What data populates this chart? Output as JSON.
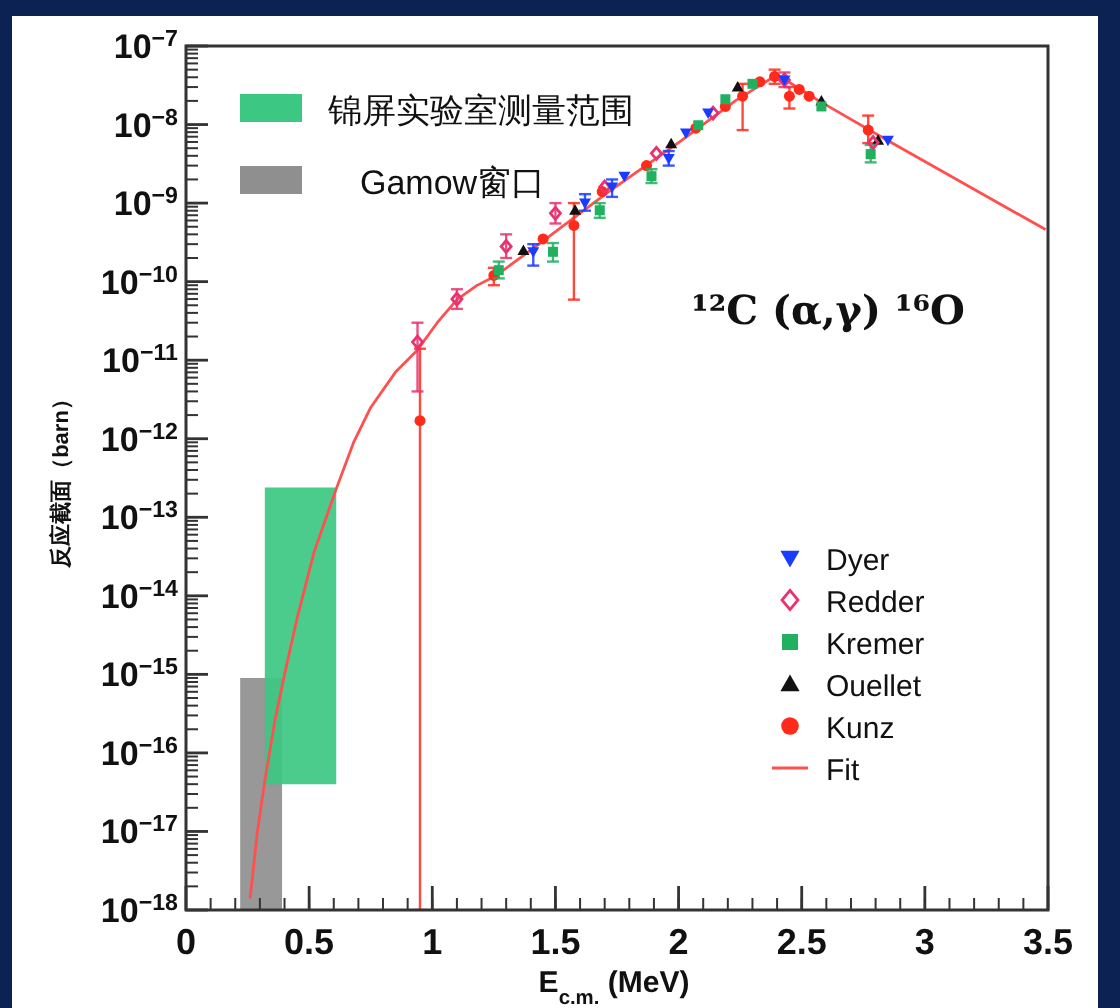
{
  "chart_data": {
    "type": "scatter",
    "xlabel": "E$_{c.m.}$ (MeV)",
    "ylabel": "反应截面（barn）",
    "annotations": [
      "¹²C (α,γ) ¹⁶O"
    ],
    "xlim": [
      0,
      3.5
    ],
    "xticks": [
      0,
      0.5,
      1,
      1.5,
      2,
      2.5,
      3,
      3.5
    ],
    "ylim": [
      1e-18,
      1e-07
    ],
    "log": "y",
    "yticks": [
      {
        "value": 1e-18,
        "label": "10$^{−18}$"
      },
      {
        "value": 1e-17,
        "label": "10$^{−17}$"
      },
      {
        "value": 1e-16,
        "label": "10$^{−16}$"
      },
      {
        "value": 1e-15,
        "label": "10$^{−15}$"
      },
      {
        "value": 1e-14,
        "label": "10$^{−14}$"
      },
      {
        "value": 1e-13,
        "label": "10$^{−13}$"
      },
      {
        "value": 1e-12,
        "label": "10$^{−12}$"
      },
      {
        "value": 1e-11,
        "label": "10$^{−11}$"
      },
      {
        "value": 1e-10,
        "label": "10$^{−10}$"
      },
      {
        "value": 1e-09,
        "label": "10$^{−9}$"
      },
      {
        "value": 1e-08,
        "label": "10$^{−8}$"
      },
      {
        "value": 1e-07,
        "label": "10$^{−7}$"
      }
    ],
    "legend": "right",
    "grid": false,
    "series": [
      {
        "name": "锦屏实验室测量范围",
        "type": "line",
        "color": "#3cc882",
        "x": [
          0.32,
          0.61
        ],
        "values": [
          null,
          null
        ],
        "lower": [
          4e-17,
          4e-17
        ],
        "upper": [
          2.4e-13,
          2.4e-13
        ]
      },
      {
        "name": "Gamow窗口",
        "type": "line",
        "color": "#8f8f8f",
        "x": [
          0.22,
          0.39
        ],
        "values": [
          null,
          null
        ],
        "lower": [
          1e-18,
          1e-18
        ],
        "upper": [
          9e-16,
          9e-16
        ]
      },
      {
        "name": "Dyer",
        "marker": "triangle_down",
        "color": "#1a3cff",
        "x": [
          1.41,
          1.62,
          1.73,
          1.78,
          1.96,
          2.03,
          2.12,
          2.43,
          2.85
        ],
        "values": [
          2.4e-10,
          1e-09,
          1.6e-09,
          2.2e-09,
          3.7e-09,
          7.8e-09,
          1.4e-08,
          3.7e-08,
          6.3e-09
        ],
        "errors": [
          [
            1.6e-10,
            3e-10
          ],
          [
            8e-10,
            1.3e-09
          ],
          [
            1.2e-09,
            2e-09
          ],
          null,
          [
            3e-09,
            4.6e-09
          ],
          null,
          null,
          null,
          null
        ]
      },
      {
        "name": "Redder",
        "marker": "diamond",
        "color": "#e8336e",
        "x": [
          0.94,
          1.1,
          1.3,
          1.5,
          1.7,
          1.91,
          2.14,
          2.43,
          2.79
        ],
        "values": [
          1.7e-11,
          6e-11,
          2.8e-10,
          7.4e-10,
          1.6e-09,
          4.3e-09,
          1.4e-08,
          3.7e-08,
          5.9e-09
        ],
        "errors": [
          [
            4e-12,
            3e-11
          ],
          [
            4.5e-11,
            8e-11
          ],
          [
            2e-10,
            4e-10
          ],
          [
            5.5e-10,
            1e-09
          ],
          null,
          null,
          null,
          [
            3e-08,
            4.6e-08
          ],
          null
        ]
      },
      {
        "name": "Kremer",
        "marker": "square",
        "color": "#20b060",
        "x": [
          1.27,
          1.49,
          1.68,
          1.89,
          2.08,
          2.19,
          2.3,
          2.58,
          2.78
        ],
        "values": [
          1.4e-10,
          2.4e-10,
          8.1e-10,
          2.2e-09,
          9.8e-09,
          2.1e-08,
          3.3e-08,
          1.7e-08,
          4.2e-09
        ],
        "errors": [
          [
            1.1e-10,
            1.8e-10
          ],
          [
            1.8e-10,
            3.1e-10
          ],
          [
            6.5e-10,
            1e-09
          ],
          [
            1.8e-09,
            2.7e-09
          ],
          null,
          null,
          null,
          null,
          [
            3.3e-09,
            5.5e-09
          ]
        ]
      },
      {
        "name": "Ouellet",
        "marker": "triangle",
        "color": "#111111",
        "x": [
          1.37,
          1.58,
          1.97,
          2.24,
          2.58,
          2.81
        ],
        "values": [
          2.5e-10,
          8.1e-10,
          5.7e-09,
          3e-08,
          2e-08,
          6.3e-09
        ]
      },
      {
        "name": "Kunz",
        "marker": "circle",
        "color": "#ff2a1a",
        "x": [
          0.95,
          1.25,
          1.45,
          1.575,
          1.69,
          1.87,
          2.07,
          2.19,
          2.26,
          2.33,
          2.39,
          2.45,
          2.49,
          2.53,
          2.77
        ],
        "values": [
          1.7e-12,
          1.2e-10,
          3.5e-10,
          5.2e-10,
          1.4e-09,
          3e-09,
          9e-09,
          1.7e-08,
          2.3e-08,
          3.5e-08,
          4.1e-08,
          2.3e-08,
          2.8e-08,
          2.3e-08,
          8.5e-09
        ],
        "errors": [
          [
            1e-18,
            1.4e-11
          ],
          [
            9e-11,
            1.5e-10
          ],
          null,
          [
            5.9e-11,
            1e-09
          ],
          null,
          null,
          null,
          null,
          [
            8.5e-09,
            3.3e-08
          ],
          null,
          [
            3.3e-08,
            5e-08
          ],
          [
            1.6e-08,
            3e-08
          ],
          null,
          null,
          [
            5.8e-09,
            1.3e-08
          ]
        ]
      },
      {
        "name": "Fit",
        "type": "line",
        "color": "#ff5050",
        "x": [
          0.26,
          0.29,
          0.32,
          0.36,
          0.4,
          0.45,
          0.52,
          0.61,
          0.68,
          0.75,
          0.85,
          0.94,
          1.02,
          1.1,
          1.18,
          1.26,
          1.445,
          1.71,
          2.0,
          2.23,
          2.4,
          2.57,
          2.84,
          3.49
        ],
        "values": [
          1.4e-18,
          1e-17,
          4.4e-17,
          2.5e-16,
          1e-15,
          5e-15,
          3.6e-14,
          2.3e-13,
          8.9e-13,
          2.5e-12,
          7e-12,
          1.35e-11,
          3e-11,
          5.9e-11,
          8.9e-11,
          1.2e-10,
          3.2e-10,
          1.35e-09,
          5.9e-09,
          2e-08,
          4.3e-08,
          2e-08,
          6.5e-09,
          4.6e-10
        ]
      }
    ]
  }
}
